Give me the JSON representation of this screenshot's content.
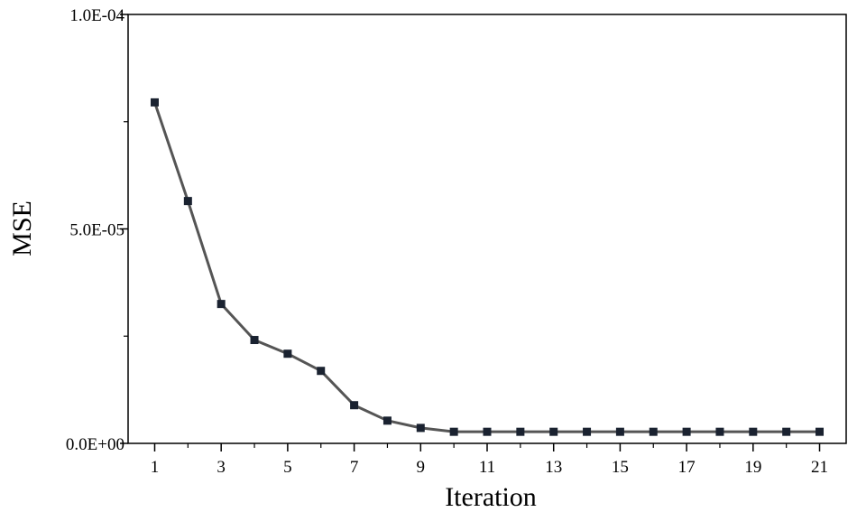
{
  "chart_data": {
    "type": "line",
    "xlabel": "Iteration",
    "ylabel": "MSE",
    "xlim": [
      0.2,
      21.8
    ],
    "ylim": [
      0,
      0.0001
    ],
    "x_ticks": [
      1,
      3,
      5,
      7,
      9,
      11,
      13,
      15,
      17,
      19,
      21
    ],
    "x_tick_labels": [
      "1",
      "3",
      "5",
      "7",
      "9",
      "11",
      "13",
      "15",
      "17",
      "19",
      "21"
    ],
    "x_minor_ticks": [
      2,
      4,
      6,
      8,
      10,
      12,
      14,
      16,
      18,
      20
    ],
    "y_ticks": [
      0,
      5e-05,
      0.0001
    ],
    "y_tick_labels": [
      "0.0E+00",
      "5.0E-05",
      "1.0E-04"
    ],
    "y_minor_ticks": [
      2.5e-05,
      7.5e-05
    ],
    "grid": false,
    "series": [
      {
        "x": [
          1,
          2,
          3,
          4,
          5,
          6,
          7,
          8,
          9,
          10,
          11,
          12,
          13,
          14,
          15,
          16,
          17,
          18,
          19,
          20,
          21
        ],
        "values": [
          7.95e-05,
          5.65e-05,
          3.25e-05,
          2.41e-05,
          2.09e-05,
          1.69e-05,
          8.9e-06,
          5.3e-06,
          3.6e-06,
          2.7e-06,
          2.7e-06,
          2.7e-06,
          2.7e-06,
          2.7e-06,
          2.7e-06,
          2.7e-06,
          2.7e-06,
          2.7e-06,
          2.7e-06,
          2.7e-06,
          2.7e-06
        ],
        "line_color": "#555555",
        "marker_color": "#1a2230"
      }
    ]
  }
}
